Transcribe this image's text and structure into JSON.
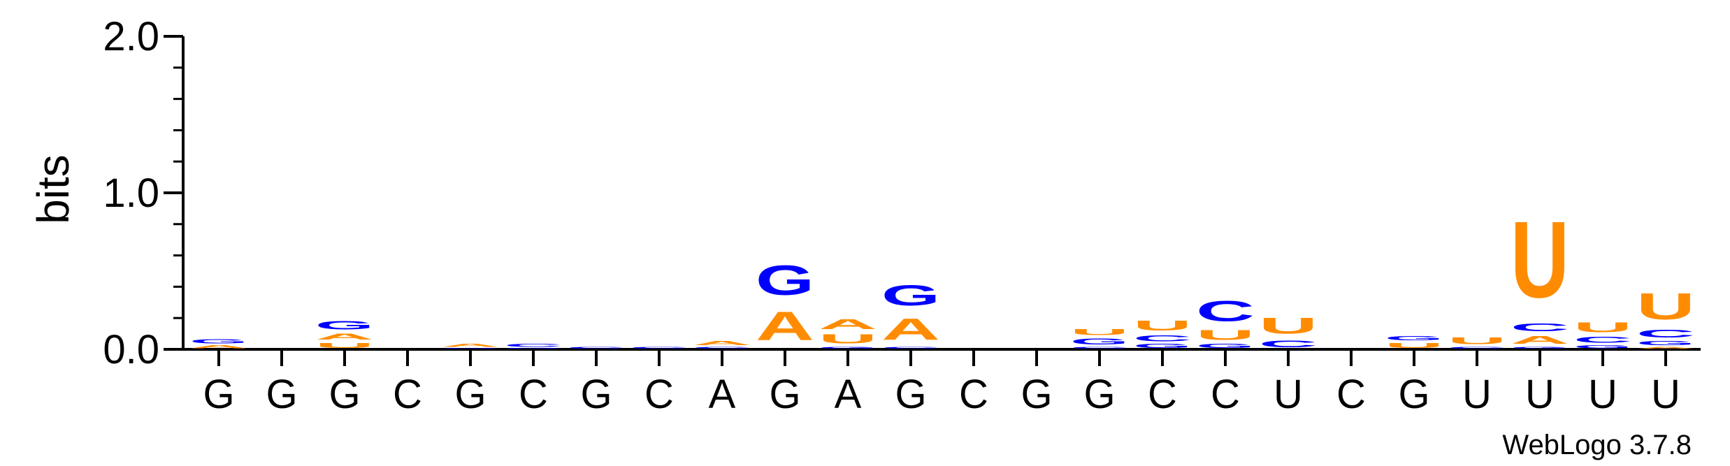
{
  "chart_data": {
    "type": "sequence-logo",
    "ylabel": "bits",
    "ylim": [
      0,
      2.0
    ],
    "yticks": [
      {
        "value": 0.0,
        "label": "0.0"
      },
      {
        "value": 1.0,
        "label": "1.0"
      },
      {
        "value": 2.0,
        "label": "2.0"
      }
    ],
    "x_labels": [
      "G",
      "G",
      "G",
      "C",
      "G",
      "C",
      "G",
      "C",
      "A",
      "G",
      "A",
      "G",
      "C",
      "G",
      "G",
      "C",
      "C",
      "U",
      "C",
      "G",
      "U",
      "U",
      "U",
      "U"
    ],
    "colors": {
      "G": "#0000ff",
      "C": "#0000ff",
      "A": "#ff8c00",
      "U": "#ff8c00"
    },
    "positions": [
      {
        "stack": [
          {
            "letter": "A",
            "bits": 0.03
          },
          {
            "letter": "G",
            "bits": 0.04
          }
        ]
      },
      {
        "stack": []
      },
      {
        "stack": [
          {
            "letter": "U",
            "bits": 0.05
          },
          {
            "letter": "A",
            "bits": 0.06
          },
          {
            "letter": "G",
            "bits": 0.09
          }
        ]
      },
      {
        "stack": []
      },
      {
        "stack": [
          {
            "letter": "G",
            "bits": 0.01
          },
          {
            "letter": "A",
            "bits": 0.03
          }
        ]
      },
      {
        "stack": [
          {
            "letter": "G",
            "bits": 0.01
          },
          {
            "letter": "C",
            "bits": 0.03
          }
        ]
      },
      {
        "stack": [
          {
            "letter": "C",
            "bits": 0.02
          }
        ]
      },
      {
        "stack": [
          {
            "letter": "C",
            "bits": 0.02
          }
        ]
      },
      {
        "stack": [
          {
            "letter": "C",
            "bits": 0.02
          },
          {
            "letter": "A",
            "bits": 0.04
          }
        ]
      },
      {
        "stack": [
          {
            "letter": "A",
            "bits": 0.29
          },
          {
            "letter": "G",
            "bits": 0.3
          }
        ]
      },
      {
        "stack": [
          {
            "letter": "G",
            "bits": 0.02
          },
          {
            "letter": "U",
            "bits": 0.09
          },
          {
            "letter": "A",
            "bits": 0.1
          }
        ]
      },
      {
        "stack": [
          {
            "letter": "C",
            "bits": 0.02
          },
          {
            "letter": "A",
            "bits": 0.22
          },
          {
            "letter": "G",
            "bits": 0.21
          }
        ]
      },
      {
        "stack": []
      },
      {
        "stack": []
      },
      {
        "stack": [
          {
            "letter": "C",
            "bits": 0.02
          },
          {
            "letter": "G",
            "bits": 0.06
          },
          {
            "letter": "U",
            "bits": 0.06
          }
        ]
      },
      {
        "stack": [
          {
            "letter": "G",
            "bits": 0.04
          },
          {
            "letter": "C",
            "bits": 0.06
          },
          {
            "letter": "U",
            "bits": 0.1
          }
        ]
      },
      {
        "stack": [
          {
            "letter": "G",
            "bits": 0.04
          },
          {
            "letter": "U",
            "bits": 0.1
          },
          {
            "letter": "C",
            "bits": 0.21
          }
        ]
      },
      {
        "stack": [
          {
            "letter": "C",
            "bits": 0.07
          },
          {
            "letter": "U",
            "bits": 0.16
          }
        ]
      },
      {
        "stack": []
      },
      {
        "stack": [
          {
            "letter": "U",
            "bits": 0.05
          },
          {
            "letter": "G",
            "bits": 0.04
          }
        ]
      },
      {
        "stack": [
          {
            "letter": "C",
            "bits": 0.02
          },
          {
            "letter": "U",
            "bits": 0.07
          }
        ]
      },
      {
        "stack": [
          {
            "letter": "G",
            "bits": 0.02
          },
          {
            "letter": "A",
            "bits": 0.08
          },
          {
            "letter": "C",
            "bits": 0.08
          },
          {
            "letter": "U",
            "bits": 0.78
          }
        ]
      },
      {
        "stack": [
          {
            "letter": "G",
            "bits": 0.03
          },
          {
            "letter": "C",
            "bits": 0.06
          },
          {
            "letter": "U",
            "bits": 0.1
          }
        ]
      },
      {
        "stack": [
          {
            "letter": "A",
            "bits": 0.02
          },
          {
            "letter": "G",
            "bits": 0.04
          },
          {
            "letter": "C",
            "bits": 0.08
          },
          {
            "letter": "U",
            "bits": 0.27
          }
        ]
      }
    ],
    "watermark": "WebLogo 3.7.8"
  }
}
